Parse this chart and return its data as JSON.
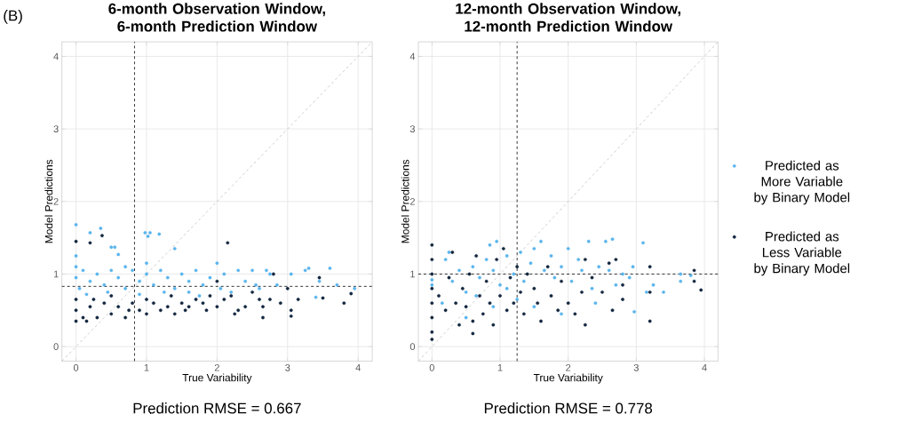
{
  "chart_data": [
    {
      "type": "scatter",
      "title": "6-month Observation Window, 6-month Prediction Window",
      "xlabel": "True Variability",
      "ylabel": "Model Predictions",
      "annotations": [
        "(B)",
        "Prediction RMSE = 0.667"
      ],
      "xlim": [
        -0.2,
        4.2
      ],
      "ylim": [
        -0.2,
        4.2
      ],
      "xticks": [
        0,
        1,
        2,
        3,
        4
      ],
      "yticks": [
        0,
        1,
        2,
        3,
        4
      ],
      "grid": true,
      "marker": "circle",
      "legend": false,
      "ref_lines": [
        {
          "axis": "x",
          "value": 0.83,
          "color": "#333333",
          "line_style": "dashed"
        },
        {
          "axis": "y",
          "value": 0.83,
          "color": "#333333",
          "line_style": "dashed"
        }
      ],
      "series": [
        {
          "type": "line",
          "color": "#c8c8c8",
          "line_style": "dashed",
          "marker": "none",
          "x": [
            -0.2,
            4.2
          ],
          "values": [
            -0.2,
            4.2
          ]
        },
        {
          "color": "#5ab4ec",
          "x": [
            0,
            0,
            0.2,
            0.35,
            0.5,
            0.55,
            0.6,
            0.98,
            1.05,
            1.02,
            1.18,
            1.4,
            0,
            0,
            0.1,
            0.2,
            0.3,
            0.4,
            0.5,
            0.6,
            0.7,
            0.8,
            0.9,
            1.0,
            1.1,
            1.2,
            1.3,
            1.4,
            1.5,
            1.6,
            1.7,
            1.8,
            1.9,
            2.0,
            2.05,
            2.1,
            2.2,
            2.3,
            2.4,
            2.5,
            2.6,
            2.7,
            2.75,
            2.85,
            3.05,
            3.25,
            3.3,
            3.45,
            3.6,
            3.7,
            3.95,
            3.4,
            2.55,
            0.15,
            0.45,
            0.9,
            1.25,
            1.75,
            0.05,
            1.6,
            0.7,
            1.0
          ],
          "values": [
            1.68,
            1.25,
            1.57,
            1.63,
            1.37,
            1.37,
            1.27,
            1.57,
            1.57,
            1.52,
            1.55,
            1.35,
            1.1,
            0.95,
            1.05,
            0.9,
            1.0,
            0.85,
            1.05,
            0.95,
            0.8,
            1.05,
            0.9,
            1.0,
            0.85,
            1.05,
            0.95,
            0.8,
            1.0,
            0.9,
            1.05,
            0.85,
            0.95,
            1.15,
            0.8,
            1.0,
            0.75,
            1.05,
            0.9,
            1.05,
            0.8,
            1.05,
            1.0,
            0.85,
            1.0,
            1.05,
            1.08,
            0.9,
            1.08,
            0.85,
            0.8,
            0.68,
            0.85,
            0.72,
            0.75,
            0.72,
            0.75,
            0.7,
            0.8,
            0.75,
            1.1,
            1.15
          ]
        },
        {
          "color": "#13263f",
          "x": [
            0,
            0.2,
            0.37,
            2.15,
            0,
            0,
            0,
            0.1,
            0.2,
            0.3,
            0.4,
            0.5,
            0.6,
            0.7,
            0.8,
            0.9,
            1.0,
            1.1,
            1.2,
            1.3,
            1.4,
            1.5,
            1.6,
            1.7,
            1.8,
            1.9,
            2.0,
            2.0,
            2.1,
            2.2,
            2.25,
            2.3,
            2.4,
            2.5,
            2.6,
            2.65,
            2.65,
            2.75,
            2.8,
            2.9,
            3.0,
            3.05,
            3.05,
            3.15,
            3.45,
            3.5,
            3.8,
            3.9,
            0.15,
            0.5,
            1.0,
            1.35,
            0.25,
            0.75,
            1.55,
            1.85
          ],
          "values": [
            1.45,
            1.43,
            1.53,
            1.43,
            0.35,
            0.5,
            0.65,
            0.4,
            0.55,
            0.4,
            0.6,
            0.45,
            0.55,
            0.4,
            0.6,
            0.5,
            0.45,
            0.6,
            0.5,
            0.55,
            0.45,
            0.6,
            0.55,
            0.65,
            0.6,
            0.7,
            0.55,
            0.9,
            0.65,
            0.7,
            0.45,
            0.5,
            0.55,
            0.75,
            0.65,
            0.4,
            0.55,
            0.65,
            1.0,
            0.6,
            0.8,
            0.5,
            0.42,
            0.65,
            0.95,
            0.67,
            0.6,
            0.73,
            0.35,
            0.7,
            0.65,
            0.7,
            0.65,
            0.5,
            0.5,
            0.5
          ]
        }
      ]
    },
    {
      "type": "scatter",
      "title": "12-month Observation Window, 12-month Prediction Window",
      "xlabel": "True Variability",
      "ylabel": "Model Predictions",
      "annotations": [
        "Prediction RMSE = 0.778"
      ],
      "xlim": [
        -0.2,
        4.2
      ],
      "ylim": [
        -0.2,
        4.2
      ],
      "xticks": [
        0,
        1,
        2,
        3,
        4
      ],
      "yticks": [
        0,
        1,
        2,
        3,
        4
      ],
      "grid": true,
      "marker": "circle",
      "legend": "right",
      "ref_lines": [
        {
          "axis": "x",
          "value": 1.25,
          "color": "#333333",
          "line_style": "dashed"
        },
        {
          "axis": "y",
          "value": 1.0,
          "color": "#333333",
          "line_style": "dashed"
        }
      ],
      "series": [
        {
          "type": "line",
          "color": "#c8c8c8",
          "line_style": "dashed",
          "marker": "none",
          "x": [
            -0.2,
            4.2
          ],
          "values": [
            -0.2,
            4.2
          ]
        },
        {
          "name": "Predicted as More Variable by Binary Model",
          "color": "#5ab4ec",
          "x": [
            0,
            0,
            0.2,
            0.25,
            0.3,
            0.4,
            0.5,
            0.6,
            0.7,
            0.8,
            0.85,
            0.95,
            0.9,
            1.0,
            1.1,
            1.2,
            1.3,
            1.35,
            1.45,
            1.5,
            1.6,
            1.65,
            1.75,
            1.8,
            1.9,
            2.0,
            2.05,
            2.15,
            2.2,
            2.3,
            2.35,
            2.45,
            2.55,
            2.6,
            2.65,
            2.7,
            2.8,
            2.9,
            2.95,
            2.97,
            3.1,
            3.15,
            3.25,
            3.4,
            3.65,
            3.65,
            3.8,
            1.5,
            1.9,
            2.4,
            0.5,
            0.9,
            1.25,
            0.15,
            0.65,
            1.1
          ],
          "values": [
            0.92,
            0.85,
            1.2,
            1.3,
            0.9,
            1.05,
            0.75,
            1.1,
            0.95,
            1.2,
            1.4,
            1.45,
            1.05,
            0.85,
            1.25,
            1.0,
            1.3,
            0.9,
            1.15,
            1.35,
            1.45,
            1.05,
            1.25,
            0.95,
            1.1,
            1.35,
            0.9,
            1.2,
            1.05,
            1.45,
            0.8,
            1.1,
            1.45,
            1.05,
            1.48,
            0.85,
            1.0,
            0.95,
            1.1,
            0.48,
            1.43,
            0.75,
            0.85,
            0.75,
            0.9,
            1.0,
            0.98,
            0.55,
            0.45,
            0.6,
            0.4,
            0.55,
            0.65,
            0.6,
            0.7,
            0.8
          ]
        },
        {
          "name": "Predicted as Less Variable by Binary Model",
          "color": "#13263f",
          "x": [
            0,
            0,
            0,
            0,
            0,
            0,
            0,
            0,
            0.1,
            0.2,
            0.25,
            0.3,
            0.35,
            0.4,
            0.45,
            0.5,
            0.55,
            0.6,
            0.6,
            0.65,
            0.7,
            0.75,
            0.8,
            0.85,
            0.9,
            0.95,
            1.0,
            1.05,
            1.1,
            1.15,
            1.2,
            1.25,
            1.3,
            1.35,
            1.4,
            1.5,
            1.55,
            1.6,
            1.7,
            1.75,
            1.85,
            1.9,
            2.0,
            2.1,
            2.2,
            2.25,
            2.25,
            2.35,
            2.5,
            2.65,
            2.7,
            2.8,
            2.8,
            3.2,
            3.2,
            3.2,
            3.85,
            3.85,
            3.95,
            2.6
          ],
          "values": [
            1.4,
            1.2,
            1.0,
            0.8,
            0.6,
            0.4,
            0.2,
            0.1,
            0.7,
            0.5,
            0.95,
            1.3,
            0.6,
            0.3,
            0.8,
            0.55,
            1.0,
            0.35,
            0.18,
            1.25,
            0.7,
            0.45,
            0.9,
            0.6,
            0.3,
            1.2,
            0.7,
            1.35,
            0.5,
            0.95,
            0.6,
            1.1,
            0.75,
            0.45,
            1.0,
            0.8,
            0.6,
            0.35,
            1.1,
            0.7,
            0.5,
            0.9,
            0.6,
            0.45,
            0.75,
            0.3,
            1.2,
            0.95,
            0.75,
            0.5,
            1.2,
            0.85,
            0.65,
            1.1,
            0.35,
            0.75,
            0.9,
            1.05,
            0.78,
            1.15
          ]
        }
      ]
    }
  ]
}
